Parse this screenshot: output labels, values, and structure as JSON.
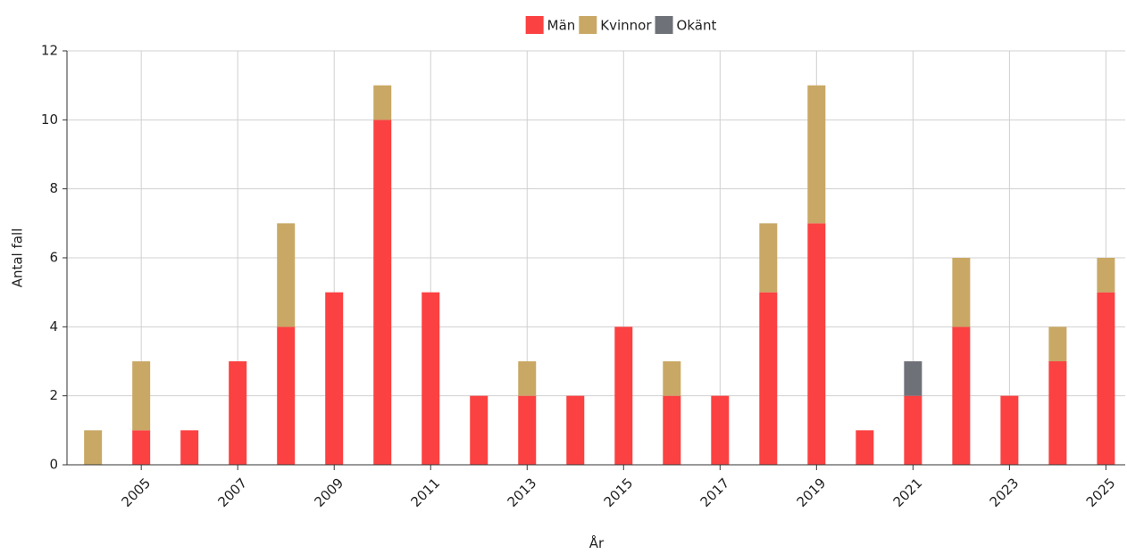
{
  "chart_data": {
    "type": "stacked_bar",
    "x": [
      2004,
      2005,
      2006,
      2007,
      2008,
      2009,
      2010,
      2011,
      2012,
      2013,
      2014,
      2015,
      2016,
      2017,
      2018,
      2019,
      2020,
      2021,
      2022,
      2023,
      2024,
      2025
    ],
    "series": [
      {
        "name": "Män",
        "color": "#fb4141",
        "values": [
          0,
          1,
          1,
          3,
          4,
          5,
          10,
          5,
          2,
          2,
          2,
          4,
          2,
          2,
          5,
          7,
          1,
          2,
          4,
          2,
          3,
          5
        ]
      },
      {
        "name": "Kvinnor",
        "color": "#c9a865",
        "values": [
          1,
          2,
          0,
          0,
          3,
          0,
          1,
          0,
          0,
          1,
          0,
          0,
          1,
          0,
          2,
          4,
          0,
          0,
          2,
          0,
          1,
          1
        ]
      },
      {
        "name": "Okänt",
        "color": "#6f7179",
        "values": [
          0,
          0,
          0,
          0,
          0,
          0,
          0,
          0,
          0,
          0,
          0,
          0,
          0,
          0,
          0,
          0,
          0,
          1,
          0,
          0,
          0,
          0
        ]
      }
    ],
    "xlabel": "År",
    "ylabel": "Antal fall",
    "xlim": [
      2003.46,
      2025.4
    ],
    "xticks": [
      2005,
      2007,
      2009,
      2011,
      2013,
      2015,
      2017,
      2019,
      2021,
      2023,
      2025
    ],
    "ylim": [
      0,
      12
    ],
    "yticks": [
      0,
      2,
      4,
      6,
      8,
      10,
      12
    ],
    "grid": true,
    "legend": "top"
  }
}
